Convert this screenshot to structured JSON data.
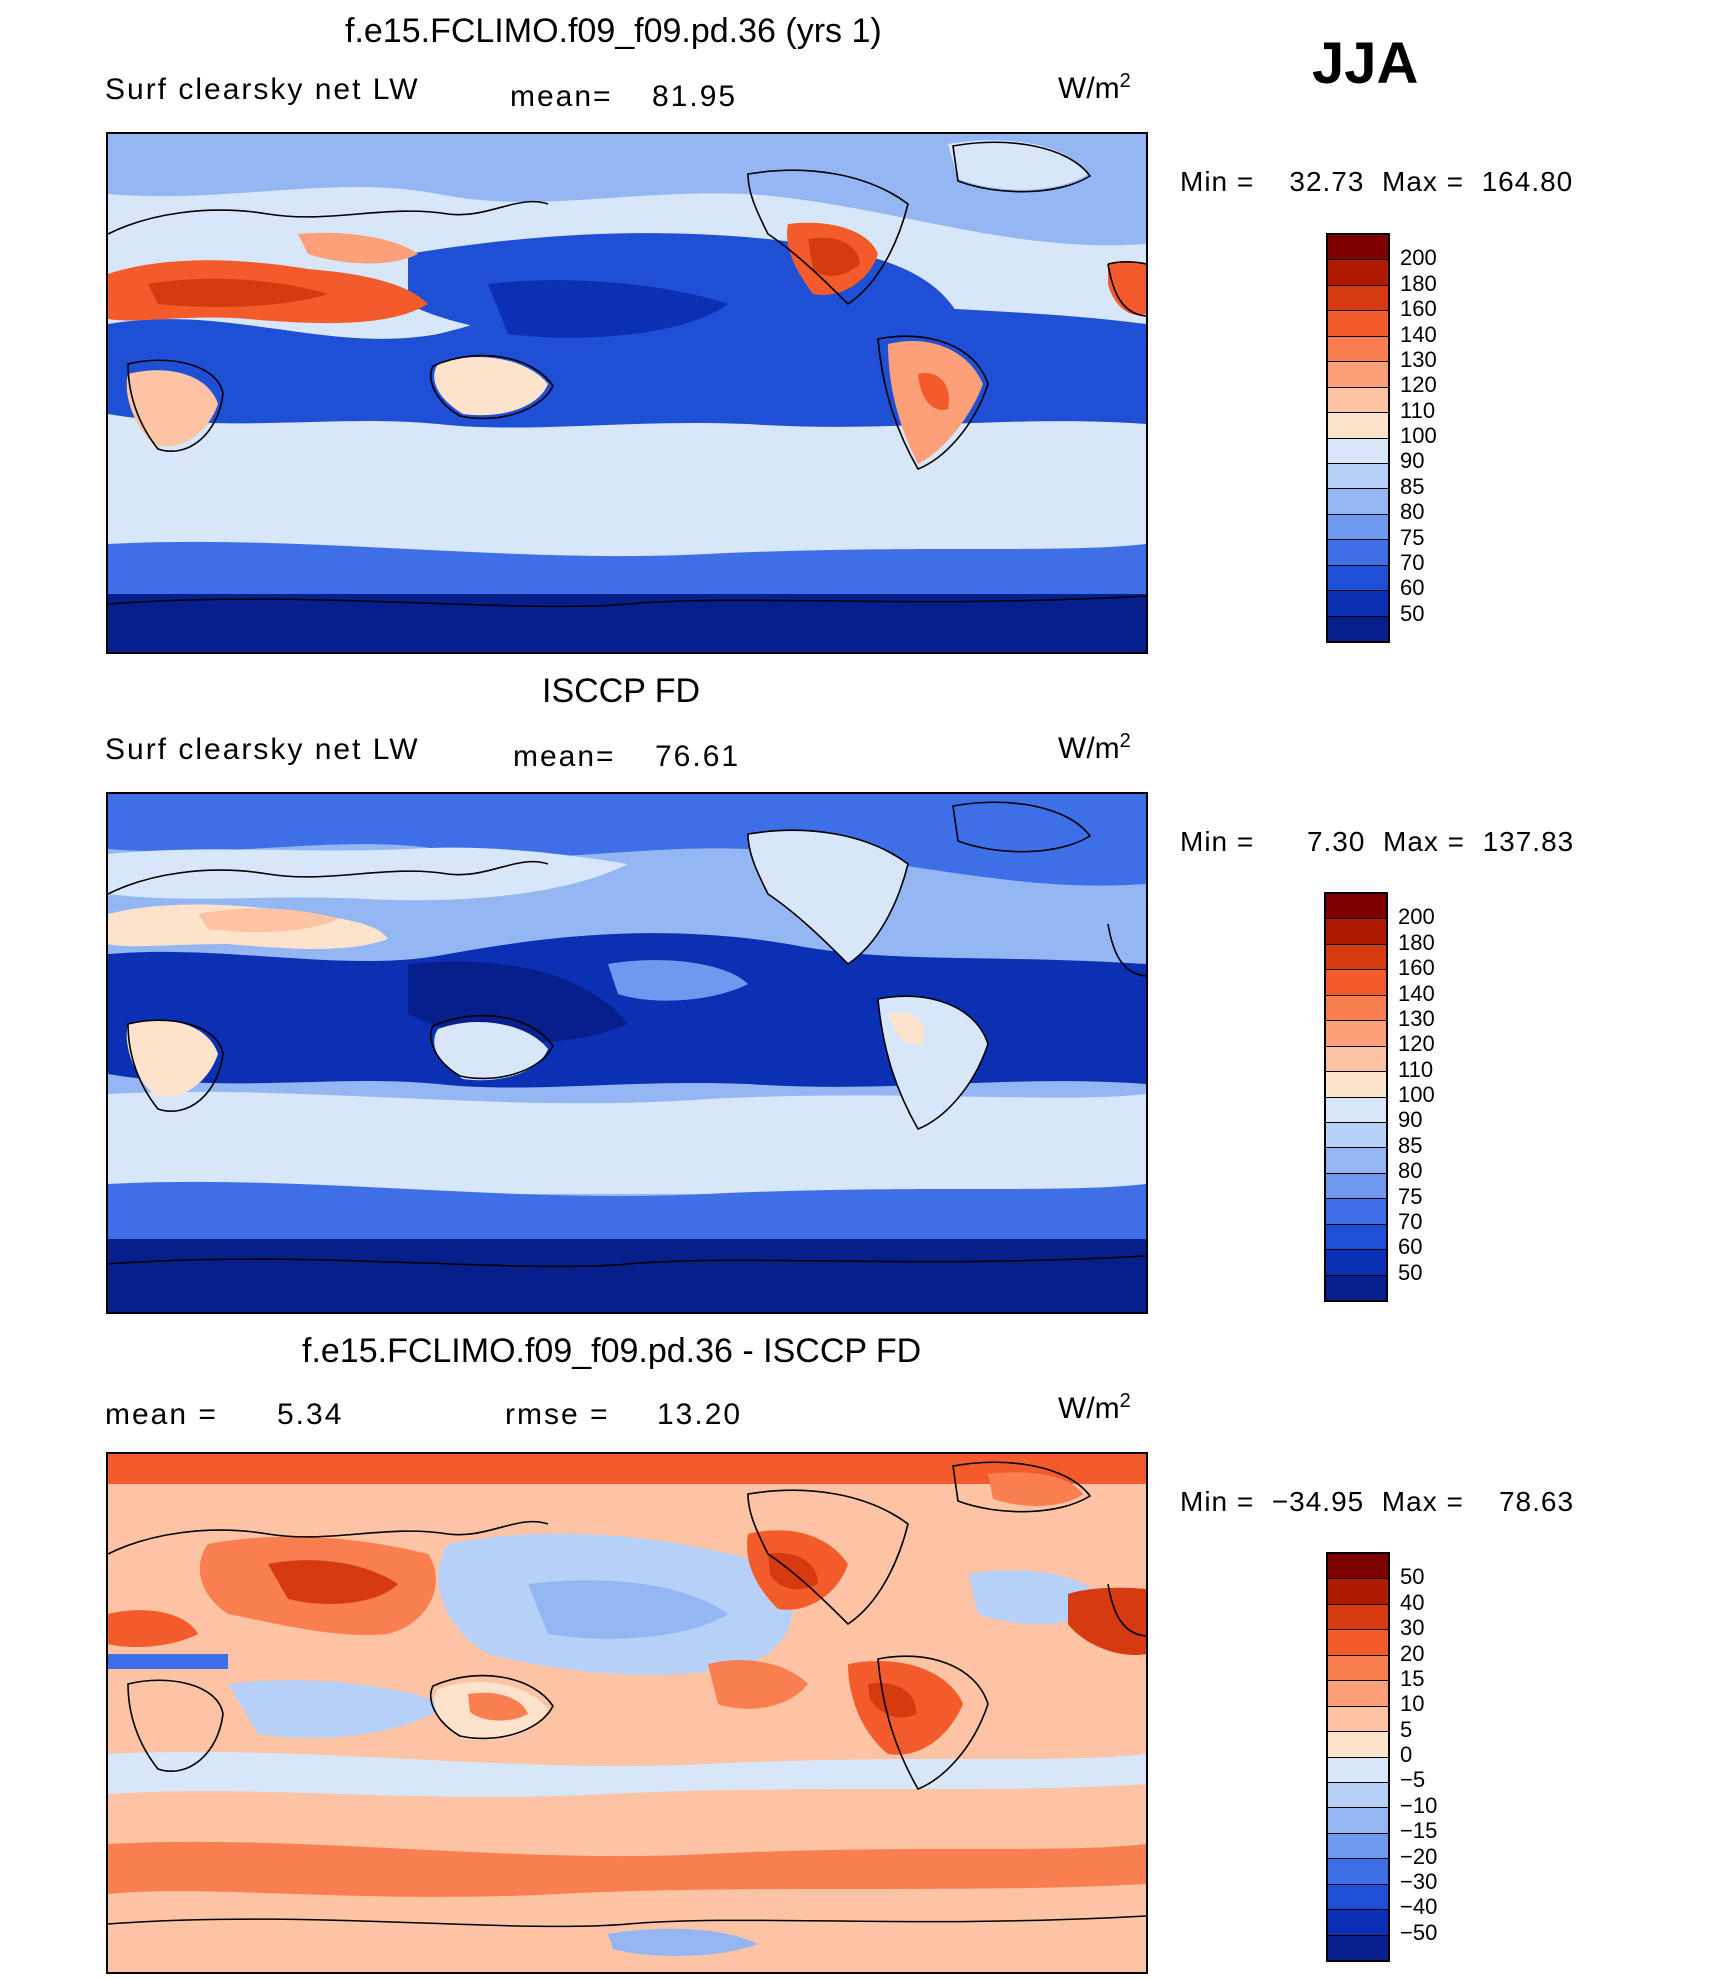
{
  "header": {
    "season": "JJA"
  },
  "panels": [
    {
      "id": "model",
      "title": "f.e15.FCLIMO.f09_f09.pd.36 (yrs 1)",
      "field_label": "Surf clearsky net LW",
      "stat1_label": "mean=",
      "stat1_value": "81.95",
      "units_base": "W/m",
      "units_exp": "2",
      "min_label": "Min =",
      "min_value": "32.73",
      "max_label": "Max =",
      "max_value": "164.80",
      "colorbar": {
        "labels": [
          "200",
          "180",
          "160",
          "140",
          "130",
          "120",
          "110",
          "100",
          "90",
          "85",
          "80",
          "75",
          "70",
          "60",
          "50"
        ],
        "colors": [
          "#7f0000",
          "#b01a00",
          "#d63a10",
          "#f35c2a",
          "#fa7f50",
          "#fba078",
          "#fcc3a4",
          "#fde2cc",
          "#d8e6fa",
          "#b7d0f8",
          "#94b7f4",
          "#6f98ef",
          "#3e6fe6",
          "#1f4fd4",
          "#0b30b3",
          "#061f8a"
        ]
      }
    },
    {
      "id": "obs",
      "title": "ISCCP FD",
      "field_label": "Surf clearsky net LW",
      "stat1_label": "mean=",
      "stat1_value": "76.61",
      "units_base": "W/m",
      "units_exp": "2",
      "min_label": "Min =",
      "min_value": "7.30",
      "max_label": "Max =",
      "max_value": "137.83",
      "colorbar": {
        "labels": [
          "200",
          "180",
          "160",
          "140",
          "130",
          "120",
          "110",
          "100",
          "90",
          "85",
          "80",
          "75",
          "70",
          "60",
          "50"
        ],
        "colors": [
          "#7f0000",
          "#b01a00",
          "#d63a10",
          "#f35c2a",
          "#fa7f50",
          "#fba078",
          "#fcc3a4",
          "#fde2cc",
          "#d8e6fa",
          "#b7d0f8",
          "#94b7f4",
          "#6f98ef",
          "#3e6fe6",
          "#1f4fd4",
          "#0b30b3",
          "#061f8a"
        ]
      }
    },
    {
      "id": "diff",
      "title": "f.e15.FCLIMO.f09_f09.pd.36 - ISCCP FD",
      "stat1_label": "mean =",
      "stat1_value": "5.34",
      "stat2_label": "rmse =",
      "stat2_value": "13.20",
      "units_base": "W/m",
      "units_exp": "2",
      "min_label": "Min =",
      "min_value": "−34.95",
      "max_label": "Max =",
      "max_value": "78.63",
      "colorbar": {
        "labels": [
          "50",
          "40",
          "30",
          "20",
          "15",
          "10",
          "5",
          "0",
          "−5",
          "−10",
          "−15",
          "−20",
          "−30",
          "−40",
          "−50"
        ],
        "colors": [
          "#7f0000",
          "#b01a00",
          "#d63a10",
          "#f35c2a",
          "#fa7f50",
          "#fba078",
          "#fcc3a4",
          "#fde2cc",
          "#d8e6fa",
          "#b7d0f8",
          "#94b7f4",
          "#6f98ef",
          "#3e6fe6",
          "#1f4fd4",
          "#0b30b3",
          "#061f8a"
        ]
      }
    }
  ]
}
